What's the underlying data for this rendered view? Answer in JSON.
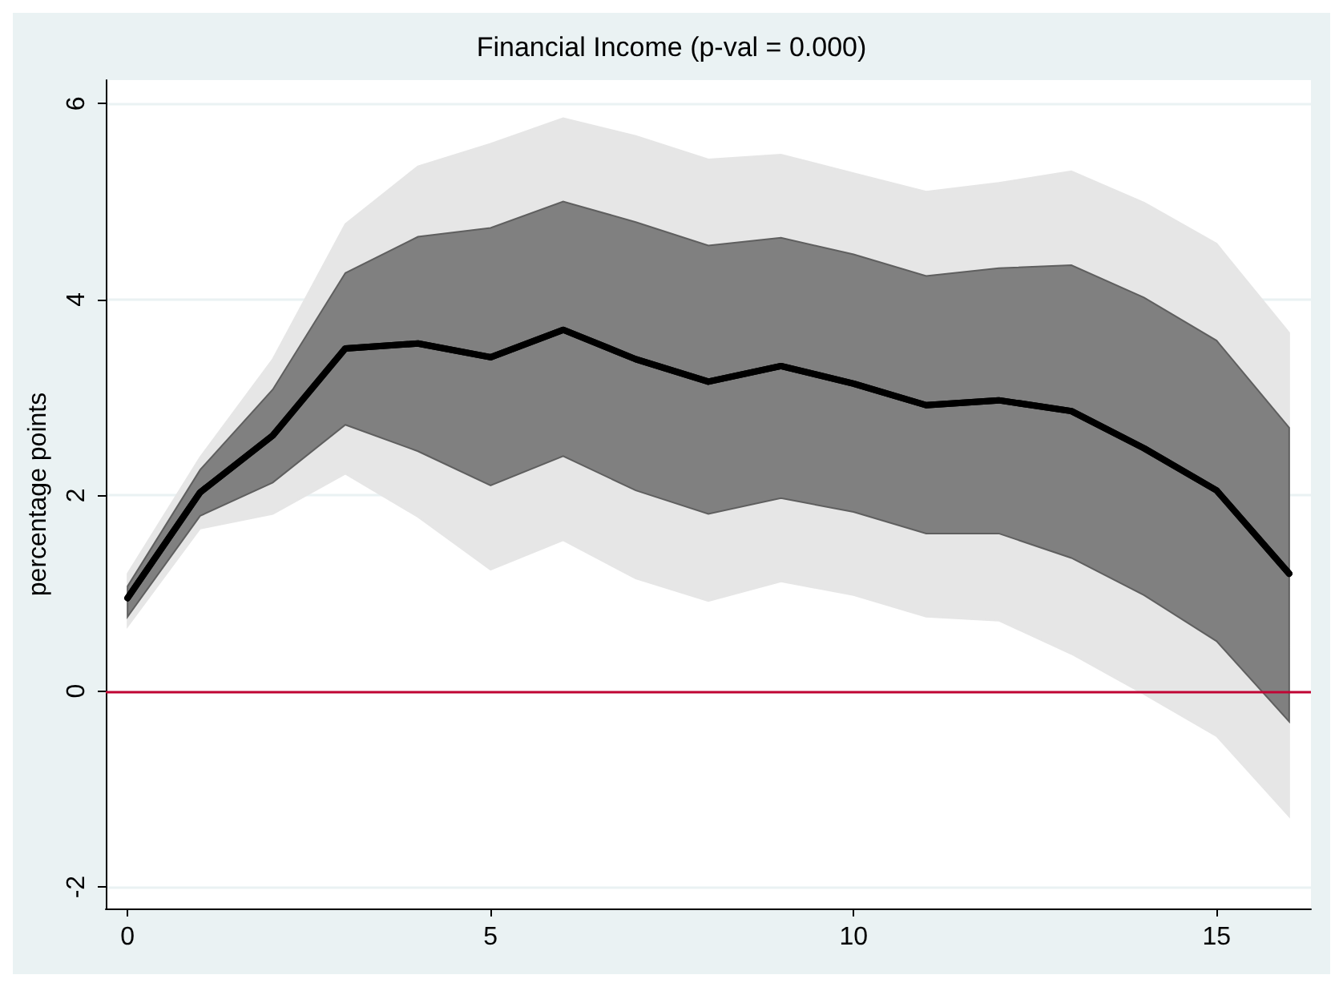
{
  "chart_data": {
    "type": "line",
    "title": "Financial Income (p-val = 0.000)",
    "ylabel": "percentage points",
    "x": [
      0,
      1,
      2,
      3,
      4,
      5,
      6,
      7,
      8,
      9,
      10,
      11,
      12,
      13,
      14,
      15,
      16
    ],
    "series": [
      {
        "color": "#000000",
        "values": [
          0.95,
          2.03,
          2.61,
          3.5,
          3.55,
          3.41,
          3.69,
          3.39,
          3.16,
          3.32,
          3.14,
          2.92,
          2.97,
          2.86,
          2.48,
          2.05,
          1.2
        ],
        "lower": [
          0.66,
          1.66,
          1.81,
          2.22,
          1.78,
          1.24,
          1.54,
          1.15,
          0.92,
          1.12,
          0.98,
          0.76,
          0.72,
          0.38,
          -0.03,
          -0.46,
          -1.28
        ],
        "upper": [
          1.2,
          2.39,
          3.39,
          4.77,
          5.36,
          5.59,
          5.85,
          5.67,
          5.43,
          5.48,
          5.29,
          5.1,
          5.19,
          5.31,
          4.99,
          4.57,
          3.66
        ]
      },
      {
        "color": "#000000",
        "values": [
          0.95,
          2.03,
          2.61,
          3.5,
          3.55,
          3.41,
          3.69,
          3.39,
          3.16,
          3.32,
          3.14,
          2.92,
          2.97,
          2.86,
          2.48,
          2.05,
          1.2
        ],
        "lower": [
          0.76,
          1.79,
          2.13,
          2.72,
          2.45,
          2.1,
          2.4,
          2.05,
          1.81,
          1.97,
          1.83,
          1.61,
          1.61,
          1.36,
          0.98,
          0.51,
          -0.31
        ],
        "upper": [
          1.07,
          2.26,
          3.08,
          4.27,
          4.64,
          4.73,
          5.0,
          4.79,
          4.55,
          4.63,
          4.46,
          4.24,
          4.32,
          4.35,
          4.02,
          3.58,
          2.69
        ]
      }
    ],
    "xlim": [
      -0.3,
      16.3
    ],
    "ylim": [
      -2.22,
      6.24
    ],
    "xticks": [
      0,
      5,
      10,
      15
    ],
    "yticks": [
      -2,
      0,
      2,
      4,
      6
    ],
    "grid": "y",
    "marker": "none",
    "line_style": "solid",
    "ref_lines": [
      {
        "axis": "y",
        "value": 0,
        "color": "#c10534"
      }
    ]
  }
}
